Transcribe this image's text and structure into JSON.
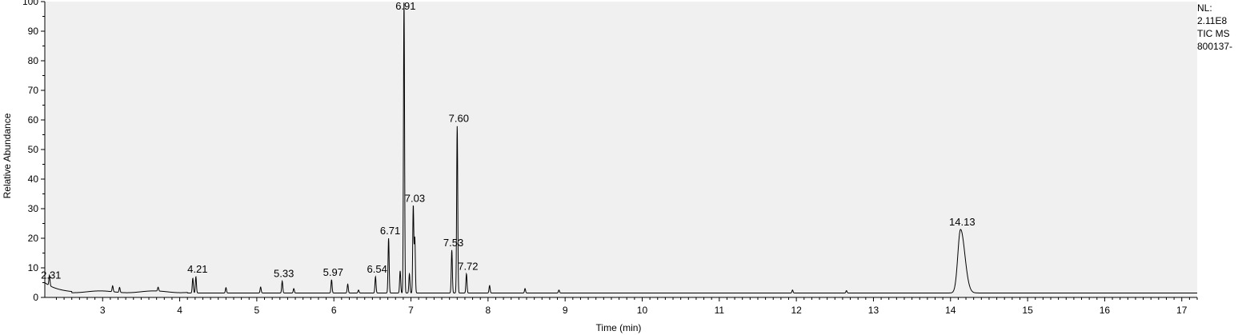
{
  "chart_data": {
    "type": "line",
    "xlabel": "Time (min)",
    "ylabel": "Relative Abundance",
    "xlim": [
      2.25,
      17.2
    ],
    "ylim": [
      0,
      100
    ],
    "x_ticks": [
      3,
      4,
      5,
      6,
      7,
      8,
      9,
      10,
      11,
      12,
      13,
      14,
      15,
      16,
      17
    ],
    "y_ticks": [
      0,
      10,
      20,
      30,
      40,
      50,
      60,
      70,
      80,
      90,
      100
    ],
    "baseline": 1.5,
    "grid": false,
    "background": "#f0f0f0",
    "line_color": "#000000",
    "annotated_peaks": [
      {
        "label": "2.31",
        "x": 2.31,
        "y": 5
      },
      {
        "label": "4.21",
        "x": 4.21,
        "y": 7
      },
      {
        "label": "5.33",
        "x": 5.33,
        "y": 5.5
      },
      {
        "label": "5.97",
        "x": 5.97,
        "y": 6
      },
      {
        "label": "6.54",
        "x": 6.54,
        "y": 7
      },
      {
        "label": "6.71",
        "x": 6.71,
        "y": 20
      },
      {
        "label": "6.91",
        "x": 6.91,
        "y": 100
      },
      {
        "label": "7.03",
        "x": 7.03,
        "y": 31
      },
      {
        "label": "7.53",
        "x": 7.53,
        "y": 16
      },
      {
        "label": "7.60",
        "x": 7.6,
        "y": 58
      },
      {
        "label": "7.72",
        "x": 7.72,
        "y": 8
      },
      {
        "label": "14.13",
        "x": 14.13,
        "y": 23
      }
    ],
    "minor_peaks": [
      {
        "x": 3.13,
        "y": 3.5
      },
      {
        "x": 3.22,
        "y": 3.2
      },
      {
        "x": 3.72,
        "y": 2.8
      },
      {
        "x": 4.17,
        "y": 6.5
      },
      {
        "x": 4.6,
        "y": 3.3
      },
      {
        "x": 5.05,
        "y": 3.5
      },
      {
        "x": 5.48,
        "y": 3
      },
      {
        "x": 6.18,
        "y": 4.5
      },
      {
        "x": 6.32,
        "y": 2.5
      },
      {
        "x": 6.86,
        "y": 9
      },
      {
        "x": 6.98,
        "y": 8
      },
      {
        "x": 7.05,
        "y": 20
      },
      {
        "x": 8.02,
        "y": 4
      },
      {
        "x": 8.48,
        "y": 3
      },
      {
        "x": 8.92,
        "y": 2.5
      },
      {
        "x": 11.95,
        "y": 2.5
      },
      {
        "x": 12.65,
        "y": 2.3
      }
    ]
  },
  "side_info": [
    "NL:",
    "2.11E8",
    "TIC  MS",
    "800137-"
  ]
}
